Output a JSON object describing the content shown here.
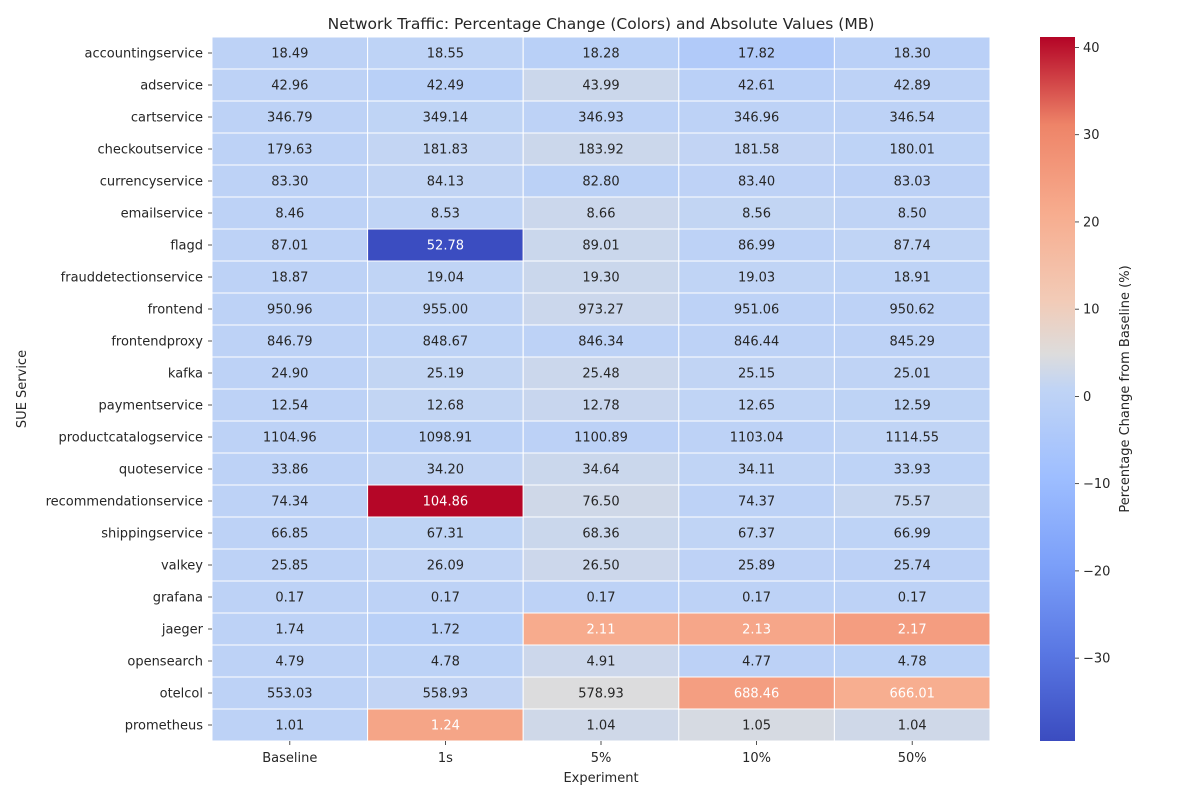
{
  "chart_data": {
    "type": "heatmap",
    "title": "Network Traffic: Percentage Change (Colors) and Absolute Values (MB)",
    "xlabel": "Experiment",
    "ylabel": "SUE Service",
    "colorbar_label": "Percentage Change from Baseline (%)",
    "colormap": "coolwarm",
    "color_range": [
      -39.5,
      41.2
    ],
    "colorbar_ticks": [
      40,
      30,
      20,
      10,
      0,
      -10,
      -20,
      -30
    ],
    "columns": [
      "Baseline",
      "1s",
      "5%",
      "10%",
      "50%"
    ],
    "rows": [
      "accountingservice",
      "adservice",
      "cartservice",
      "checkoutservice",
      "currencyservice",
      "emailservice",
      "flagd",
      "frauddetectionservice",
      "frontend",
      "frontendproxy",
      "kafka",
      "paymentservice",
      "productcatalogservice",
      "quoteservice",
      "recommendationservice",
      "shippingservice",
      "valkey",
      "grafana",
      "jaeger",
      "opensearch",
      "otelcol",
      "prometheus"
    ],
    "values": [
      [
        "18.49",
        "18.55",
        "18.28",
        "17.82",
        "18.30"
      ],
      [
        "42.96",
        "42.49",
        "43.99",
        "42.61",
        "42.89"
      ],
      [
        "346.79",
        "349.14",
        "346.93",
        "346.96",
        "346.54"
      ],
      [
        "179.63",
        "181.83",
        "183.92",
        "181.58",
        "180.01"
      ],
      [
        "83.30",
        "84.13",
        "82.80",
        "83.40",
        "83.03"
      ],
      [
        "8.46",
        "8.53",
        "8.66",
        "8.56",
        "8.50"
      ],
      [
        "87.01",
        "52.78",
        "89.01",
        "86.99",
        "87.74"
      ],
      [
        "18.87",
        "19.04",
        "19.30",
        "19.03",
        "18.91"
      ],
      [
        "950.96",
        "955.00",
        "973.27",
        "951.06",
        "950.62"
      ],
      [
        "846.79",
        "848.67",
        "846.34",
        "846.44",
        "845.29"
      ],
      [
        "24.90",
        "25.19",
        "25.48",
        "25.15",
        "25.01"
      ],
      [
        "12.54",
        "12.68",
        "12.78",
        "12.65",
        "12.59"
      ],
      [
        "1104.96",
        "1098.91",
        "1100.89",
        "1103.04",
        "1114.55"
      ],
      [
        "33.86",
        "34.20",
        "34.64",
        "34.11",
        "33.93"
      ],
      [
        "74.34",
        "104.86",
        "76.50",
        "74.37",
        "75.57"
      ],
      [
        "66.85",
        "67.31",
        "68.36",
        "67.37",
        "66.99"
      ],
      [
        "25.85",
        "26.09",
        "26.50",
        "25.89",
        "25.74"
      ],
      [
        "0.17",
        "0.17",
        "0.17",
        "0.17",
        "0.17"
      ],
      [
        "1.74",
        "1.72",
        "2.11",
        "2.13",
        "2.17"
      ],
      [
        "4.79",
        "4.78",
        "4.91",
        "4.77",
        "4.78"
      ],
      [
        "553.03",
        "558.93",
        "578.93",
        "688.46",
        "666.01"
      ],
      [
        "1.01",
        "1.24",
        "1.04",
        "1.05",
        "1.04"
      ]
    ]
  }
}
